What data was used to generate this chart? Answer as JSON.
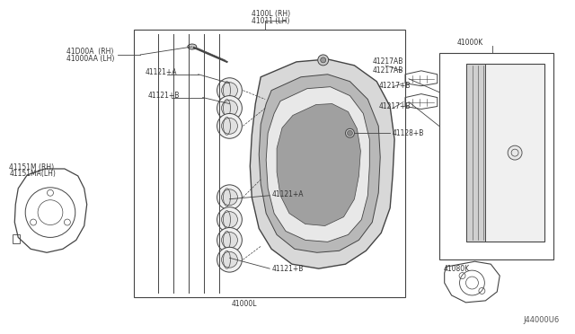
{
  "bg_color": "#ffffff",
  "line_color": "#444444",
  "text_color": "#333333",
  "fig_width": 6.4,
  "fig_height": 3.72,
  "diagram_id": "J44000U6",
  "labels": {
    "bolt1": "41D00A  (RH)",
    "bolt2": "41000AA (LH)",
    "caliper1": "4100L (RH)",
    "caliper2": "41011 (LH)",
    "piston_top_a": "41121+A",
    "piston_top_b": "41121+B",
    "bleeder": "41128+B",
    "caliper_body": "41000L",
    "piston_bot_a": "41121+A",
    "piston_bot_b": "41121+B",
    "dust1": "41151M (RH)",
    "dust2": "41151MA(LH)",
    "clip_ab1": "41217AB",
    "clip_ab2": "41217AB",
    "clip_b1": "41217+B",
    "clip_b2": "41217+B",
    "pad_assy": "41000K",
    "pad_kit": "41080K"
  }
}
